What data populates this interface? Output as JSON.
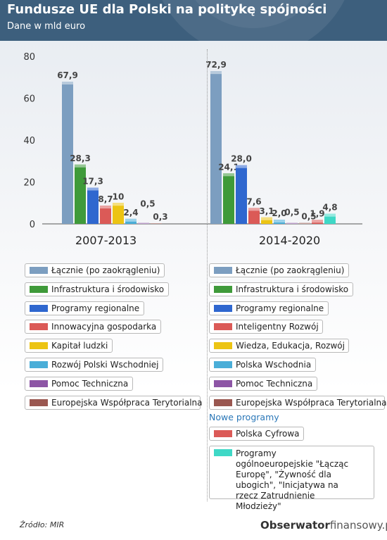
{
  "header": {
    "title": "Fundusze UE dla Polski na politykę spójności",
    "subtitle": "Dane w mld euro"
  },
  "colors": {
    "header_bg": "#3d5f7d",
    "accent_blue": "#2a77b8"
  },
  "chart_data": {
    "type": "bar",
    "ylim": [
      0,
      80
    ],
    "yticks": [
      0,
      20,
      40,
      60,
      80
    ],
    "grid": false,
    "legend_position": "below",
    "groups": [
      {
        "label": "2007-2013",
        "bars": [
          {
            "name": "Łącznie (po zaokrągleniu)",
            "value": 67.9,
            "label": "67,9",
            "color": "#7c9ec0"
          },
          {
            "name": "Infrastruktura i środowisko",
            "value": 28.3,
            "label": "28,3",
            "color": "#3f9a3a"
          },
          {
            "name": "Programy regionalne",
            "value": 17.3,
            "label": "17,3",
            "color": "#2f67cf"
          },
          {
            "name": "Innowacyjna gospodarka",
            "value": 8.7,
            "label": "8,7",
            "color": "#db5a57"
          },
          {
            "name": "Kapitał ludzki",
            "value": 10,
            "label": "10",
            "color": "#ecc413"
          },
          {
            "name": "Rozwój Polski Wschodniej",
            "value": 2.4,
            "label": "2,4",
            "color": "#4aaed8"
          },
          {
            "name": "Pomoc Techniczna",
            "value": 0.5,
            "label": "0,5",
            "color": "#8d55a5"
          },
          {
            "name": "Europejska Współpraca Terytorialna",
            "value": 0.3,
            "label": "0,3",
            "color": "#9a5750"
          }
        ]
      },
      {
        "label": "2014-2020",
        "bars": [
          {
            "name": "Łącznie (po zaokrągleniu)",
            "value": 72.9,
            "label": "72,9",
            "color": "#7c9ec0"
          },
          {
            "name": "Infrastruktura i środowisko",
            "value": 24.1,
            "label": "24,1",
            "color": "#3f9a3a"
          },
          {
            "name": "Programy regionalne",
            "value": 28.0,
            "label": "28,0",
            "color": "#2f67cf"
          },
          {
            "name": "Inteligentny Rozwój",
            "value": 7.6,
            "label": "7,6",
            "color": "#db5a57"
          },
          {
            "name": "Wiedza, Edukacja, Rozwój",
            "value": 3.1,
            "label": "3,1",
            "color": "#ecc413"
          },
          {
            "name": "Polska Wschodnia",
            "value": 2.0,
            "label": "2,0",
            "color": "#4aaed8"
          },
          {
            "name": "Pomoc Techniczna",
            "value": 0.5,
            "label": "0,5",
            "color": "#8d55a5"
          },
          {
            "name": "Europejska Współpraca Terytorialna",
            "value": 0.5,
            "label": "0,5",
            "color": "#9a5750"
          },
          {
            "name": "Polska Cyfrowa",
            "value": 1.9,
            "label": "1,9",
            "color": "#db5a57"
          },
          {
            "name": "Programy ogólnoeuropejskie \"Łącząc Europę\", \"Żywność dla ubogich\", \"Inicjatywa na rzecz Zatrudnienie Młodzieży\"",
            "value": 4.8,
            "label": "4,8",
            "color": "#3fd8c6"
          }
        ]
      }
    ]
  },
  "legend_left": [
    {
      "label": "Łącznie (po zaokrągleniu)",
      "color": "#7c9ec0"
    },
    {
      "label": "Infrastruktura i środowisko",
      "color": "#3f9a3a"
    },
    {
      "label": "Programy regionalne",
      "color": "#2f67cf"
    },
    {
      "label": "Innowacyjna gospodarka",
      "color": "#db5a57"
    },
    {
      "label": "Kapitał ludzki",
      "color": "#ecc413"
    },
    {
      "label": "Rozwój Polski Wschodniej",
      "color": "#4aaed8"
    },
    {
      "label": "Pomoc Techniczna",
      "color": "#8d55a5"
    },
    {
      "label": "Europejska Współpraca Terytorialna",
      "color": "#9a5750"
    }
  ],
  "legend_right": [
    {
      "label": "Łącznie (po zaokrągleniu)",
      "color": "#7c9ec0"
    },
    {
      "label": "Infrastruktura i środowisko",
      "color": "#3f9a3a"
    },
    {
      "label": "Programy regionalne",
      "color": "#2f67cf"
    },
    {
      "label": "Inteligentny Rozwój",
      "color": "#db5a57"
    },
    {
      "label": "Wiedza, Edukacja, Rozwój",
      "color": "#ecc413"
    },
    {
      "label": "Polska Wschodnia",
      "color": "#4aaed8"
    },
    {
      "label": "Pomoc Techniczna",
      "color": "#8d55a5"
    },
    {
      "label": "Europejska Współpraca Terytorialna",
      "color": "#9a5750"
    }
  ],
  "new_programs": {
    "heading": "Nowe programy",
    "items": [
      {
        "label": "Polska Cyfrowa",
        "color": "#db5a57"
      },
      {
        "label": "Programy ogólnoeuropejskie \"Łącząc Europę\", \"Żywność dla ubogich\", \"Inicjatywa na rzecz Zatrudnienie Młodzieży\"",
        "color": "#3fd8c6"
      }
    ]
  },
  "footer": {
    "source": "Źródło: MIR",
    "brand_bold": "Obserwator",
    "brand_light": "finansowy.pl"
  }
}
